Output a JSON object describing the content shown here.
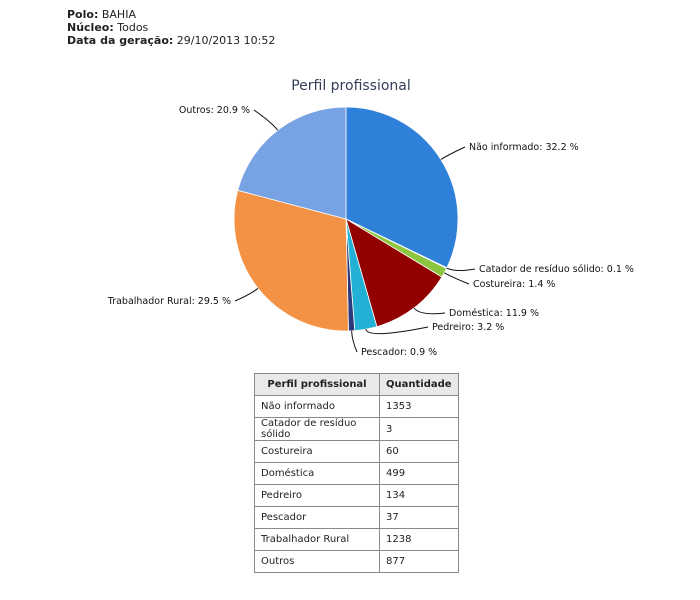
{
  "header": {
    "polo_label": "Polo:",
    "polo_value": "BAHIA",
    "nucleo_label": "Núcleo:",
    "nucleo_value": "Todos",
    "data_label": "Data da geração:",
    "data_value": "29/10/2013 10:52"
  },
  "chart_data": {
    "type": "pie",
    "title": "Perfil profissional",
    "slices": [
      {
        "label": "Não informado",
        "percent": 32.2,
        "color": "#2e80d8"
      },
      {
        "label": "Catador de resíduo sólido",
        "percent": 0.1,
        "color": "#d9c400"
      },
      {
        "label": "Costureira",
        "percent": 1.4,
        "color": "#8cc63f"
      },
      {
        "label": "Doméstica",
        "percent": 11.9,
        "color": "#920000"
      },
      {
        "label": "Pedreiro",
        "percent": 3.2,
        "color": "#22b0d4"
      },
      {
        "label": "Pescador",
        "percent": 0.9,
        "color": "#2b3a7a"
      },
      {
        "label": "Trabalhador Rural",
        "percent": 29.5,
        "color": "#f39245"
      },
      {
        "label": "Outros",
        "percent": 20.9,
        "color": "#77a2e3"
      }
    ],
    "label_suffix": " %"
  },
  "table": {
    "headers": [
      "Perfil profissional",
      "Quantidade"
    ],
    "rows": [
      [
        "Não informado",
        "1353"
      ],
      [
        "Catador de resíduo sólido",
        "3"
      ],
      [
        "Costureira",
        "60"
      ],
      [
        "Doméstica",
        "499"
      ],
      [
        "Pedreiro",
        "134"
      ],
      [
        "Pescador",
        "37"
      ],
      [
        "Trabalhador Rural",
        "1238"
      ],
      [
        "Outros",
        "877"
      ]
    ]
  }
}
